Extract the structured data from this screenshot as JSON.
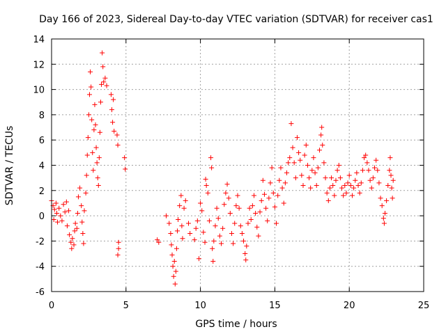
{
  "chart_data": {
    "type": "scatter",
    "title": "Day 166 of 2023, Sidereal Day-to-day VTEC variation (SDTVAR) for receiver cas1",
    "xlabel": "GPS time / hours",
    "ylabel": "SDTVAR / TECUs",
    "xlim": [
      0,
      25
    ],
    "ylim": [
      -6,
      14
    ],
    "xticks": [
      "0",
      "5",
      "10",
      "15",
      "20",
      "25"
    ],
    "yticks": [
      "-6",
      "-4",
      "-2",
      "0",
      "2",
      "4",
      "6",
      "8",
      "10",
      "12",
      "14"
    ],
    "grid": true,
    "marker": "+",
    "color": "#ff0000",
    "series": [
      {
        "name": "SDTVAR",
        "points": [
          [
            0.0,
            1.2
          ],
          [
            0.1,
            0.8
          ],
          [
            0.15,
            -0.3
          ],
          [
            0.2,
            0.5
          ],
          [
            0.3,
            1.0
          ],
          [
            0.35,
            0.2
          ],
          [
            0.4,
            -0.5
          ],
          [
            0.5,
            0.6
          ],
          [
            0.6,
            0.0
          ],
          [
            0.7,
            -0.4
          ],
          [
            0.8,
            0.9
          ],
          [
            0.9,
            0.3
          ],
          [
            1.0,
            1.1
          ],
          [
            1.05,
            -0.8
          ],
          [
            1.15,
            0.4
          ],
          [
            1.2,
            -1.5
          ],
          [
            1.3,
            -2.1
          ],
          [
            1.35,
            -2.6
          ],
          [
            1.4,
            -1.8
          ],
          [
            1.5,
            -2.3
          ],
          [
            1.55,
            -1.2
          ],
          [
            1.6,
            -0.6
          ],
          [
            1.7,
            -1.0
          ],
          [
            1.75,
            0.2
          ],
          [
            1.8,
            1.5
          ],
          [
            1.9,
            2.2
          ],
          [
            2.0,
            0.8
          ],
          [
            2.05,
            -0.5
          ],
          [
            2.1,
            -1.4
          ],
          [
            2.15,
            -2.2
          ],
          [
            2.2,
            0.4
          ],
          [
            2.3,
            1.8
          ],
          [
            2.35,
            3.2
          ],
          [
            2.4,
            4.8
          ],
          [
            2.45,
            6.2
          ],
          [
            2.5,
            8.0
          ],
          [
            2.55,
            9.6
          ],
          [
            2.6,
            11.4
          ],
          [
            2.65,
            10.2
          ],
          [
            2.7,
            7.6
          ],
          [
            2.75,
            5.0
          ],
          [
            2.8,
            3.6
          ],
          [
            2.85,
            6.8
          ],
          [
            2.9,
            8.8
          ],
          [
            2.95,
            7.2
          ],
          [
            3.0,
            5.4
          ],
          [
            3.05,
            4.2
          ],
          [
            3.1,
            3.0
          ],
          [
            3.15,
            2.4
          ],
          [
            3.2,
            4.6
          ],
          [
            3.25,
            6.6
          ],
          [
            3.3,
            9.0
          ],
          [
            3.35,
            10.4
          ],
          [
            3.4,
            12.9
          ],
          [
            3.45,
            11.8
          ],
          [
            3.5,
            10.6
          ],
          [
            3.6,
            10.9
          ],
          [
            3.7,
            10.3
          ],
          [
            4.0,
            9.6
          ],
          [
            4.05,
            8.4
          ],
          [
            4.1,
            7.4
          ],
          [
            4.15,
            9.2
          ],
          [
            4.2,
            6.7
          ],
          [
            4.4,
            6.4
          ],
          [
            4.45,
            5.6
          ],
          [
            4.5,
            -2.1
          ],
          [
            4.45,
            -3.1
          ],
          [
            4.5,
            -2.6
          ],
          [
            4.9,
            4.6
          ],
          [
            4.95,
            3.7
          ],
          [
            7.1,
            -1.9
          ],
          [
            7.2,
            -2.1
          ],
          [
            7.7,
            0.0
          ],
          [
            7.9,
            -0.6
          ],
          [
            8.0,
            -1.4
          ],
          [
            8.05,
            -2.3
          ],
          [
            8.1,
            -3.1
          ],
          [
            8.15,
            -4.0
          ],
          [
            8.2,
            -4.8
          ],
          [
            8.25,
            -3.6
          ],
          [
            8.3,
            -5.4
          ],
          [
            8.35,
            -4.4
          ],
          [
            8.4,
            -2.6
          ],
          [
            8.45,
            -1.2
          ],
          [
            8.5,
            -0.3
          ],
          [
            8.6,
            0.8
          ],
          [
            8.7,
            1.6
          ],
          [
            8.75,
            -0.8
          ],
          [
            8.8,
            -1.8
          ],
          [
            8.9,
            0.6
          ],
          [
            9.0,
            1.2
          ],
          [
            9.2,
            -0.6
          ],
          [
            9.3,
            -1.4
          ],
          [
            9.6,
            -1.9
          ],
          [
            9.7,
            -1.0
          ],
          [
            9.8,
            -0.4
          ],
          [
            9.9,
            -3.4
          ],
          [
            10.0,
            1.0
          ],
          [
            10.1,
            0.4
          ],
          [
            10.2,
            -1.3
          ],
          [
            10.3,
            -2.1
          ],
          [
            10.35,
            2.9
          ],
          [
            10.4,
            2.4
          ],
          [
            10.5,
            1.8
          ],
          [
            10.6,
            -0.4
          ],
          [
            10.7,
            4.6
          ],
          [
            10.75,
            3.8
          ],
          [
            10.8,
            -2.6
          ],
          [
            10.85,
            -3.6
          ],
          [
            10.9,
            -2.0
          ],
          [
            11.0,
            -0.8
          ],
          [
            11.1,
            0.6
          ],
          [
            11.2,
            -0.2
          ],
          [
            11.3,
            -1.6
          ],
          [
            11.4,
            -2.2
          ],
          [
            11.5,
            -1.0
          ],
          [
            11.6,
            0.9
          ],
          [
            11.7,
            1.8
          ],
          [
            11.8,
            2.5
          ],
          [
            11.9,
            1.4
          ],
          [
            12.0,
            0.2
          ],
          [
            12.1,
            -1.4
          ],
          [
            12.2,
            -2.2
          ],
          [
            12.3,
            -0.6
          ],
          [
            12.4,
            0.8
          ],
          [
            12.5,
            1.6
          ],
          [
            12.6,
            0.6
          ],
          [
            12.7,
            -0.8
          ],
          [
            12.8,
            -1.4
          ],
          [
            12.9,
            -2.0
          ],
          [
            13.0,
            -3.0
          ],
          [
            13.05,
            -3.5
          ],
          [
            13.1,
            -2.4
          ],
          [
            13.2,
            -0.6
          ],
          [
            13.3,
            0.6
          ],
          [
            13.4,
            -0.3
          ],
          [
            13.5,
            0.8
          ],
          [
            13.6,
            1.6
          ],
          [
            13.7,
            0.2
          ],
          [
            13.8,
            -0.9
          ],
          [
            13.9,
            -1.6
          ],
          [
            14.0,
            0.3
          ],
          [
            14.1,
            1.2
          ],
          [
            14.2,
            2.8
          ],
          [
            14.3,
            1.7
          ],
          [
            14.4,
            0.6
          ],
          [
            14.5,
            -0.4
          ],
          [
            14.6,
            1.4
          ],
          [
            14.7,
            2.6
          ],
          [
            14.8,
            3.8
          ],
          [
            14.9,
            1.8
          ],
          [
            15.0,
            0.7
          ],
          [
            15.1,
            -0.6
          ],
          [
            15.2,
            1.6
          ],
          [
            15.3,
            2.8
          ],
          [
            15.4,
            3.8
          ],
          [
            15.5,
            2.2
          ],
          [
            15.6,
            1.0
          ],
          [
            15.7,
            2.6
          ],
          [
            15.8,
            3.4
          ],
          [
            15.9,
            4.2
          ],
          [
            16.0,
            4.6
          ],
          [
            16.1,
            7.3
          ],
          [
            16.2,
            5.4
          ],
          [
            16.3,
            4.2
          ],
          [
            16.4,
            3.0
          ],
          [
            16.5,
            6.2
          ],
          [
            16.6,
            5.0
          ],
          [
            16.7,
            4.4
          ],
          [
            16.8,
            3.2
          ],
          [
            16.9,
            2.4
          ],
          [
            17.0,
            4.8
          ],
          [
            17.1,
            5.6
          ],
          [
            17.2,
            4.0
          ],
          [
            17.3,
            3.0
          ],
          [
            17.4,
            2.2
          ],
          [
            17.5,
            3.6
          ],
          [
            17.6,
            4.6
          ],
          [
            17.7,
            3.4
          ],
          [
            17.8,
            2.4
          ],
          [
            17.9,
            3.8
          ],
          [
            18.0,
            5.2
          ],
          [
            18.1,
            6.4
          ],
          [
            18.15,
            7.0
          ],
          [
            18.2,
            5.6
          ],
          [
            18.3,
            4.2
          ],
          [
            18.4,
            3.0
          ],
          [
            18.5,
            1.8
          ],
          [
            18.6,
            1.2
          ],
          [
            18.7,
            2.2
          ],
          [
            18.8,
            3.0
          ],
          [
            18.9,
            2.4
          ],
          [
            19.0,
            1.6
          ],
          [
            19.1,
            2.8
          ],
          [
            19.2,
            3.6
          ],
          [
            19.3,
            4.0
          ],
          [
            19.4,
            3.0
          ],
          [
            19.5,
            2.2
          ],
          [
            19.6,
            1.6
          ],
          [
            19.7,
            2.4
          ],
          [
            19.8,
            1.8
          ],
          [
            19.9,
            2.6
          ],
          [
            20.0,
            3.2
          ],
          [
            20.1,
            2.4
          ],
          [
            20.2,
            1.6
          ],
          [
            20.3,
            2.2
          ],
          [
            20.4,
            2.8
          ],
          [
            20.5,
            3.4
          ],
          [
            20.6,
            2.4
          ],
          [
            20.7,
            1.8
          ],
          [
            20.8,
            2.6
          ],
          [
            20.9,
            3.6
          ],
          [
            21.0,
            4.6
          ],
          [
            21.1,
            4.8
          ],
          [
            21.2,
            4.2
          ],
          [
            21.3,
            3.6
          ],
          [
            21.4,
            2.8
          ],
          [
            21.5,
            2.2
          ],
          [
            21.6,
            3.0
          ],
          [
            21.7,
            3.8
          ],
          [
            21.8,
            4.4
          ],
          [
            21.9,
            3.6
          ],
          [
            22.0,
            2.6
          ],
          [
            22.1,
            1.4
          ],
          [
            22.2,
            0.8
          ],
          [
            22.3,
            -0.2
          ],
          [
            22.35,
            -0.6
          ],
          [
            22.4,
            0.2
          ],
          [
            22.5,
            1.2
          ],
          [
            22.6,
            2.4
          ],
          [
            22.7,
            3.6
          ],
          [
            22.75,
            4.6
          ],
          [
            22.8,
            3.2
          ],
          [
            22.85,
            2.2
          ],
          [
            22.9,
            1.4
          ],
          [
            22.95,
            2.8
          ]
        ]
      }
    ]
  }
}
